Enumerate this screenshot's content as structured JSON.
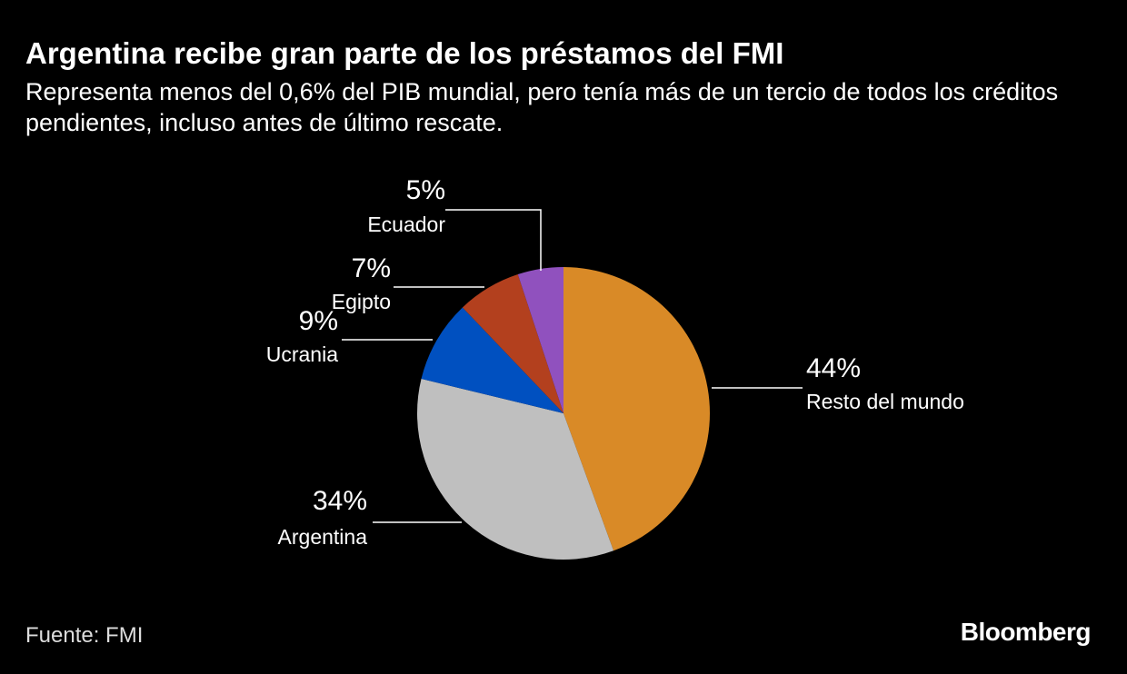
{
  "chart_data": {
    "type": "pie",
    "title": "Argentina recibe gran parte de los préstamos del FMI",
    "subtitle": "Representa menos del 0,6% del PIB mundial, pero tenía más de un tercio de todos los créditos pendientes, incluso antes de último rescate.",
    "categories": [
      "Resto del mundo",
      "Argentina",
      "Ucrania",
      "Egipto",
      "Ecuador"
    ],
    "values": [
      44,
      34,
      9,
      7,
      5
    ],
    "value_labels": [
      "44%",
      "34%",
      "9%",
      "7%",
      "5%"
    ],
    "colors": [
      "#d98a27",
      "#bfbfbf",
      "#0050c0",
      "#b3401e",
      "#9051be"
    ],
    "source": "Fuente: FMI",
    "brand": "Bloomberg"
  }
}
